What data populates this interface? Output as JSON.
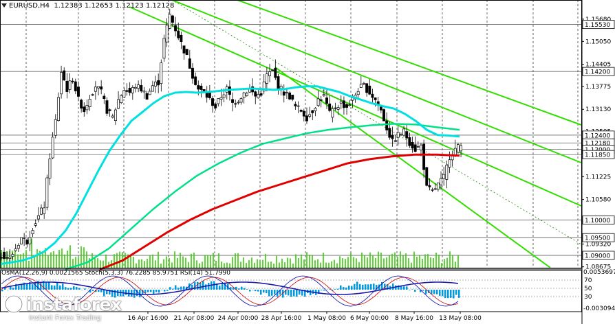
{
  "header": {
    "symbol_label": "EURUSD,H4",
    "ohlc_values": "1.12383 1.12653 1.12123 1.12128"
  },
  "indicator_header": {
    "text": "OsMA(12,26,9) 0.0021565 Stoch(5,3,3) 76.2285 85.9751 RSI(14) 51.7990"
  },
  "logo": {
    "brand": "instaforex",
    "tagline": "Instant Forex Trading"
  },
  "colors": {
    "candles": "#000000",
    "ema_fast": "#00e0e0",
    "ema_mid": "#00e08a",
    "ema_slow": "#e00000",
    "channel": "#33dd00",
    "volume": "#33cc00",
    "osma": "#0099dd",
    "stoch_main": "#0000aa",
    "stoch_signal": "#cc0000",
    "rsi": "#1a1aaa",
    "level_line": "#444444",
    "badge_bg": "#ffffff"
  },
  "chart_data": {
    "type": "candlestick",
    "title": "EURUSD,H4",
    "xlabel": "",
    "ylabel": "",
    "ylim": [
      1.0865,
      1.1595
    ],
    "x_tick_labels": [
      "16 Apr 16:00",
      "21 Apr 08:00",
      "24 Apr 00:00",
      "28 Apr 16:00",
      "1 May 08:00",
      "6 May 00:00",
      "8 May 16:00",
      "13 May 08:00"
    ],
    "y_tick_labels": [
      "1.15680",
      "1.15050",
      "1.14405",
      "1.13775",
      "1.13130",
      "1.12505",
      "1.11870",
      "1.11225",
      "1.10580",
      "1.09320",
      "1.08675"
    ],
    "y_tick_values": [
      1.1568,
      1.1505,
      1.14405,
      1.13775,
      1.1313,
      1.12505,
      1.1187,
      1.11225,
      1.1058,
      1.0932,
      1.08675
    ],
    "horizontal_levels": [
      {
        "label": "1.15530",
        "value": 1.1553
      },
      {
        "label": "1.14200",
        "value": 1.142
      },
      {
        "label": "1.12400",
        "value": 1.124
      },
      {
        "label": "1.12180",
        "value": 1.1218
      },
      {
        "label": "1.12000",
        "value": 1.12
      },
      {
        "label": "1.11850",
        "value": 1.1185
      },
      {
        "label": "1.09500",
        "value": 1.095
      },
      {
        "label": "1.10000",
        "value": 1.1
      },
      {
        "label": "1.09000",
        "value": 1.09
      }
    ],
    "close_path": [
      1.09,
      1.089,
      1.092,
      1.095,
      1.094,
      1.098,
      1.101,
      1.104,
      1.118,
      1.128,
      1.142,
      1.137,
      1.14,
      1.134,
      1.131,
      1.135,
      1.138,
      1.136,
      1.131,
      1.129,
      1.134,
      1.137,
      1.136,
      1.138,
      1.137,
      1.135,
      1.138,
      1.139,
      1.151,
      1.158,
      1.154,
      1.15,
      1.146,
      1.141,
      1.137,
      1.136,
      1.134,
      1.132,
      1.135,
      1.137,
      1.133,
      1.134,
      1.136,
      1.137,
      1.135,
      1.136,
      1.141,
      1.142,
      1.138,
      1.136,
      1.135,
      1.132,
      1.131,
      1.129,
      1.131,
      1.134,
      1.135,
      1.13,
      1.132,
      1.133,
      1.132,
      1.134,
      1.137,
      1.138,
      1.136,
      1.134,
      1.131,
      1.126,
      1.122,
      1.124,
      1.125,
      1.122,
      1.12,
      1.121,
      1.109,
      1.108,
      1.11,
      1.112,
      1.118,
      1.12,
      1.121
    ],
    "ema_fast": [
      1.0875,
      1.088,
      1.0885,
      1.0895,
      1.091,
      1.0935,
      1.097,
      1.102,
      1.108,
      1.114,
      1.1195,
      1.124,
      1.128,
      1.1305,
      1.133,
      1.135,
      1.136,
      1.1362,
      1.136,
      1.1362,
      1.1365,
      1.1368,
      1.137,
      1.1372,
      1.137,
      1.1368,
      1.137,
      1.1375,
      1.1378,
      1.1378,
      1.137,
      1.1362,
      1.135,
      1.134,
      1.133,
      1.1322,
      1.1315,
      1.13,
      1.128,
      1.1255,
      1.124,
      1.1239,
      1.1236
    ],
    "ema_mid": [
      1.086,
      1.088,
      1.092,
      1.0975,
      1.103,
      1.108,
      1.1125,
      1.116,
      1.119,
      1.1215,
      1.123,
      1.1245,
      1.1255,
      1.1262,
      1.1268,
      1.1272,
      1.127,
      1.1262,
      1.1255
    ],
    "ema_slow": [
      1.086,
      1.0885,
      1.0925,
      1.0965,
      1.1,
      1.103,
      1.1055,
      1.108,
      1.11,
      1.112,
      1.114,
      1.116,
      1.1172,
      1.118,
      1.1185,
      1.1185,
      1.1182
    ],
    "stoch_levels": [
      "70",
      "50",
      "30"
    ],
    "osma_scale": [
      "0.0053697",
      "-0.003094"
    ]
  }
}
